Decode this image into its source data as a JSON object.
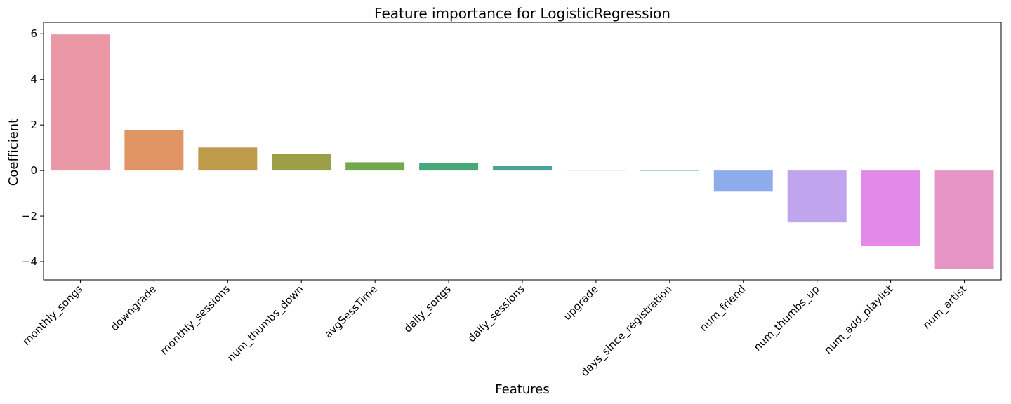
{
  "chart_data": {
    "type": "bar",
    "title": "Feature importance for LogisticRegression",
    "xlabel": "Features",
    "ylabel": "Coefficient",
    "ylim": [
      -4.8,
      6.5
    ],
    "yticks": [
      -4,
      -2,
      0,
      2,
      4,
      6
    ],
    "ytick_labels": [
      "−4",
      "−2",
      "0",
      "2",
      "4",
      "6"
    ],
    "grid": false,
    "legend": "none",
    "categories": [
      "monthly_songs",
      "downgrade",
      "monthly_sessions",
      "num_thumbs_down",
      "avgSessTime",
      "daily_songs",
      "daily_sessions",
      "upgrade",
      "days_since_registration",
      "num_friend",
      "num_thumbs_up",
      "num_add_playlist",
      "num_artist"
    ],
    "values": [
      5.97,
      1.78,
      1.01,
      0.73,
      0.36,
      0.33,
      0.21,
      0.03,
      0.02,
      -0.93,
      -2.28,
      -3.32,
      -4.32
    ],
    "colors": [
      "#ea98a5",
      "#e19464",
      "#be9b4b",
      "#9c9f48",
      "#71a84d",
      "#49a87a",
      "#4aa497",
      "#4ca3a9",
      "#4fa2b6",
      "#8eaceb",
      "#c0a4ed",
      "#e389ea",
      "#e795c6"
    ]
  }
}
